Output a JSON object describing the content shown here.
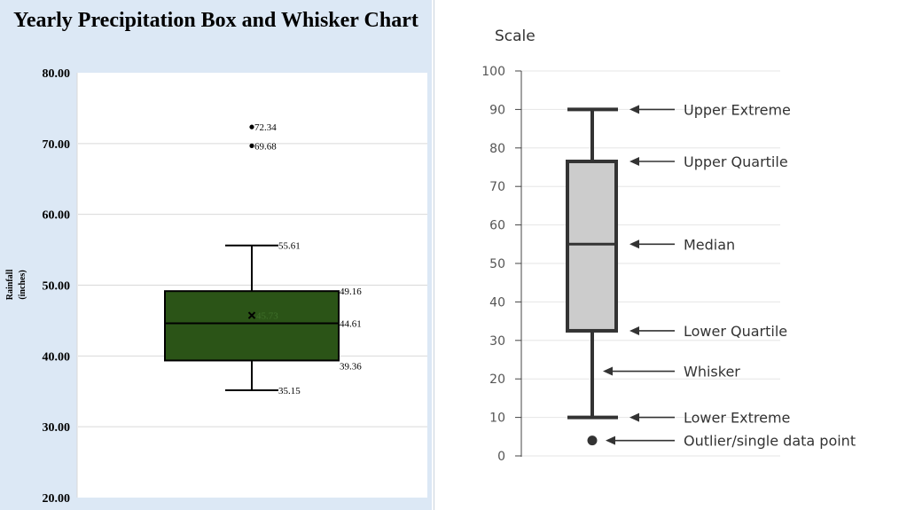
{
  "chart_data": [
    {
      "type": "box",
      "title": "Yearly Precipitation Box and Whisker Chart",
      "ylabel": "Rainfall",
      "ylabel_unit": "(inches)",
      "ylim": [
        20,
        80
      ],
      "yticks": [
        "20.00",
        "30.00",
        "40.00",
        "50.00",
        "60.00",
        "70.00",
        "80.00"
      ],
      "grid": true,
      "box": {
        "lower_whisker": 35.15,
        "q1": 39.36,
        "median": 44.61,
        "mean": 45.73,
        "q3": 49.16,
        "upper_whisker": 55.61,
        "outliers": [
          69.68,
          72.34
        ]
      },
      "labels": {
        "lower_whisker": "35.15",
        "q1": "39.36",
        "median": "44.61",
        "mean": "45.73",
        "q3": "49.16",
        "upper_whisker": "55.61",
        "outliers": [
          "69.68",
          "72.34"
        ]
      },
      "colors": {
        "box_fill": "#2b5417",
        "panel_bg": "#dce8f5",
        "plot_bg": "#ffffff"
      }
    },
    {
      "type": "box",
      "title": "Scale",
      "ylim": [
        0,
        100
      ],
      "yticks": [
        "0",
        "10",
        "20",
        "30",
        "40",
        "50",
        "60",
        "70",
        "80",
        "90",
        "100"
      ],
      "grid": true,
      "box": {
        "lower_extreme": 10,
        "q1": 32.5,
        "median": 55,
        "q3": 76.5,
        "upper_extreme": 90,
        "outlier": 4
      },
      "annotations": [
        {
          "key": "upper_extreme",
          "text": "Upper Extreme",
          "value": 90
        },
        {
          "key": "q3",
          "text": "Upper Quartile",
          "value": 76.5
        },
        {
          "key": "median",
          "text": "Median",
          "value": 55
        },
        {
          "key": "q1",
          "text": "Lower Quartile",
          "value": 32.5
        },
        {
          "key": "whisker",
          "text": "Whisker",
          "value": 22
        },
        {
          "key": "lower_extreme",
          "text": "Lower Extreme",
          "value": 10
        },
        {
          "key": "outlier",
          "text": "Outlier/single data point",
          "value": 4
        }
      ],
      "colors": {
        "box_fill": "#cccccc",
        "stroke": "#333333"
      }
    }
  ]
}
